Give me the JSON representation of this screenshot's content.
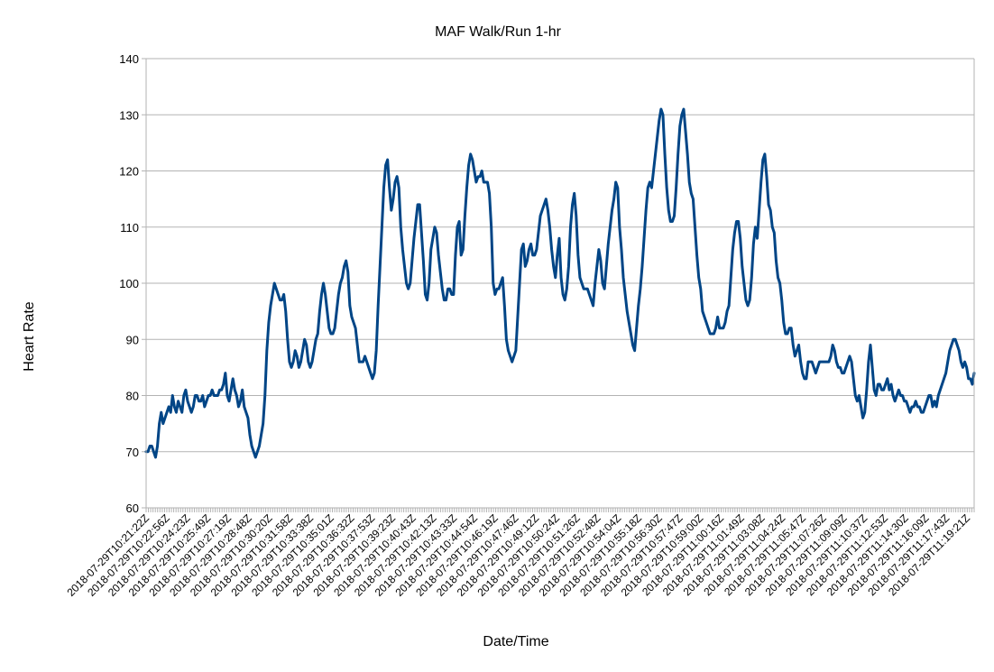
{
  "chart_data": {
    "type": "line",
    "title": "MAF Walk/Run 1-hr",
    "xlabel": "Date/Time",
    "ylabel": "Heart Rate",
    "ylim": [
      60,
      140
    ],
    "yticks": [
      60,
      70,
      80,
      90,
      100,
      110,
      120,
      130,
      140
    ],
    "grid": "horizontal",
    "legend": "none",
    "line_color": "#004586",
    "x_tick_labels": [
      "2018-07-29T10:21:22Z",
      "2018-07-29T10:22:56Z",
      "2018-07-29T10:24:23Z",
      "2018-07-29T10:25:49Z",
      "2018-07-29T10:27:19Z",
      "2018-07-29T10:28:48Z",
      "2018-07-29T10:30:20Z",
      "2018-07-29T10:31:58Z",
      "2018-07-29T10:33:38Z",
      "2018-07-29T10:35:01Z",
      "2018-07-29T10:36:32Z",
      "2018-07-29T10:37:53Z",
      "2018-07-29T10:39:23Z",
      "2018-07-29T10:40:43Z",
      "2018-07-29T10:42:13Z",
      "2018-07-29T10:43:33Z",
      "2018-07-29T10:44:54Z",
      "2018-07-29T10:46:19Z",
      "2018-07-29T10:47:46Z",
      "2018-07-29T10:49:12Z",
      "2018-07-29T10:50:24Z",
      "2018-07-29T10:51:26Z",
      "2018-07-29T10:52:48Z",
      "2018-07-29T10:54:04Z",
      "2018-07-29T10:55:18Z",
      "2018-07-29T10:56:30Z",
      "2018-07-29T10:57:47Z",
      "2018-07-29T10:59:00Z",
      "2018-07-29T11:00:16Z",
      "2018-07-29T11:01:49Z",
      "2018-07-29T11:03:08Z",
      "2018-07-29T11:04:24Z",
      "2018-07-29T11:05:47Z",
      "2018-07-29T11:07:26Z",
      "2018-07-29T11:09:09Z",
      "2018-07-29T11:10:37Z",
      "2018-07-29T11:12:53Z",
      "2018-07-29T11:14:30Z",
      "2018-07-29T11:16:09Z",
      "2018-07-29T11:17:43Z",
      "2018-07-29T11:19:21Z"
    ],
    "series": [
      {
        "values": [
          70,
          70,
          71,
          71,
          70,
          69,
          71,
          75,
          77,
          75,
          76,
          77,
          78,
          77,
          80,
          78,
          77,
          79,
          78,
          77,
          80,
          81,
          79,
          78,
          77,
          78,
          80,
          80,
          79,
          79,
          80,
          78,
          79,
          80,
          80,
          81,
          80,
          80,
          80,
          81,
          81,
          82,
          84,
          80,
          79,
          81,
          83,
          81,
          80,
          78,
          79,
          81,
          78,
          77,
          76,
          73,
          71,
          70,
          69,
          70,
          71,
          73,
          75,
          80,
          88,
          93,
          96,
          98,
          100,
          99,
          98,
          97,
          97,
          98,
          95,
          90,
          86,
          85,
          86,
          88,
          87,
          85,
          86,
          88,
          90,
          89,
          86,
          85,
          86,
          88,
          90,
          91,
          95,
          98,
          100,
          98,
          95,
          92,
          91,
          91,
          92,
          95,
          98,
          100,
          101,
          103,
          104,
          102,
          96,
          94,
          93,
          92,
          89,
          86,
          86,
          86,
          87,
          86,
          85,
          84,
          83,
          84,
          88,
          96,
          103,
          110,
          117,
          121,
          122,
          117,
          113,
          115,
          118,
          119,
          117,
          110,
          106,
          103,
          100,
          99,
          100,
          104,
          108,
          111,
          114,
          114,
          109,
          104,
          98,
          97,
          100,
          106,
          108,
          110,
          109,
          105,
          102,
          99,
          97,
          97,
          99,
          99,
          98,
          98,
          105,
          110,
          111,
          105,
          106,
          112,
          117,
          121,
          123,
          122,
          120,
          118,
          119,
          119,
          120,
          118,
          118,
          118,
          116,
          110,
          100,
          98,
          99,
          99,
          100,
          101,
          96,
          90,
          88,
          87,
          86,
          87,
          88,
          94,
          100,
          106,
          107,
          103,
          104,
          106,
          107,
          105,
          105,
          106,
          109,
          112,
          113,
          114,
          115,
          113,
          110,
          106,
          103,
          101,
          105,
          108,
          101,
          98,
          97,
          99,
          103,
          110,
          114,
          116,
          112,
          105,
          101,
          100,
          99,
          99,
          99,
          98,
          97,
          96,
          100,
          103,
          106,
          104,
          100,
          99,
          103,
          107,
          110,
          113,
          115,
          118,
          117,
          110,
          106,
          101,
          98,
          95,
          93,
          91,
          89,
          88,
          92,
          96,
          99,
          103,
          108,
          113,
          117,
          118,
          117,
          120,
          123,
          126,
          129,
          131,
          130,
          123,
          117,
          113,
          111,
          111,
          112,
          117,
          123,
          128,
          130,
          131,
          127,
          123,
          118,
          116,
          115,
          110,
          105,
          101,
          99,
          95,
          94,
          93,
          92,
          91,
          91,
          91,
          92,
          94,
          92,
          92,
          92,
          93,
          95,
          96,
          101,
          106,
          109,
          111,
          111,
          108,
          103,
          100,
          97,
          96,
          97,
          101,
          107,
          110,
          108,
          113,
          118,
          122,
          123,
          119,
          114,
          113,
          110,
          109,
          104,
          101,
          100,
          97,
          93,
          91,
          91,
          92,
          92,
          89,
          87,
          88,
          89,
          86,
          84,
          83,
          83,
          86,
          86,
          86,
          85,
          84,
          85,
          86,
          86,
          86,
          86,
          86,
          86,
          87,
          89,
          88,
          86,
          85,
          85,
          84,
          84,
          85,
          86,
          87,
          86,
          83,
          80,
          79,
          80,
          78,
          76,
          77,
          81,
          86,
          89,
          85,
          81,
          80,
          82,
          82,
          81,
          81,
          82,
          83,
          81,
          82,
          80,
          79,
          80,
          81,
          80,
          80,
          79,
          79,
          78,
          77,
          78,
          78,
          79,
          78,
          78,
          77,
          77,
          78,
          79,
          80,
          80,
          78,
          79,
          78,
          80,
          81,
          82,
          83,
          84,
          86,
          88,
          89,
          90,
          90,
          89,
          88,
          86,
          85,
          86,
          85,
          83,
          83,
          82,
          84
        ]
      }
    ]
  }
}
